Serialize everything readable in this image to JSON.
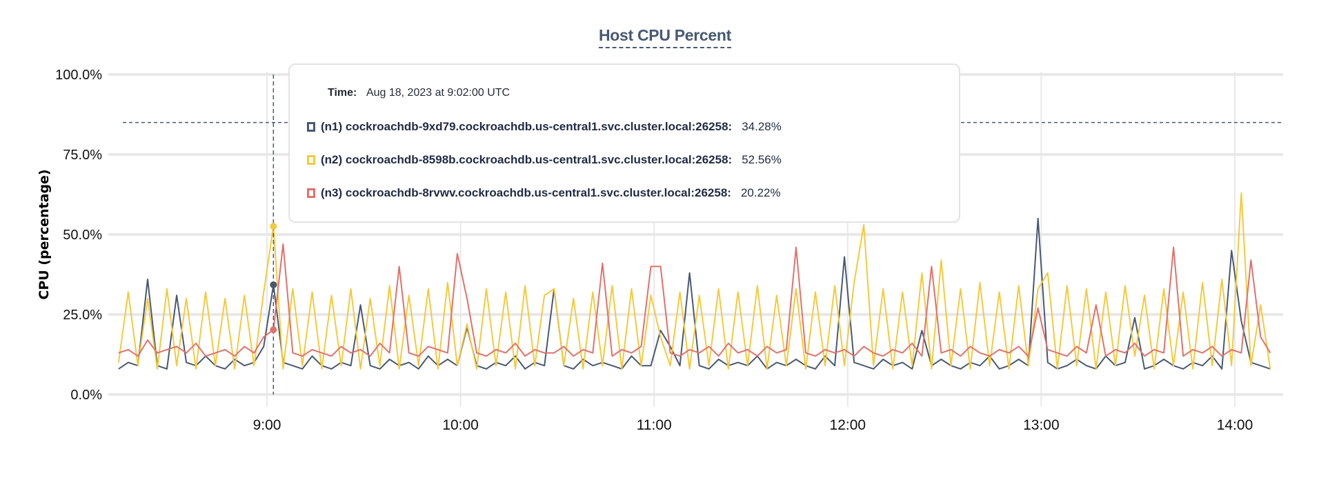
{
  "chart_data": {
    "type": "line",
    "title": "Host CPU Percent",
    "ylabel": "CPU (percentage)",
    "xlabel": "",
    "ylim": [
      0,
      100
    ],
    "yticks": [
      "0.0%",
      "25.0%",
      "50.0%",
      "75.0%",
      "100.0%"
    ],
    "ytick_values": [
      0,
      25,
      50,
      75,
      100
    ],
    "xticks": [
      "9:00",
      "10:00",
      "11:00",
      "12:00",
      "13:00",
      "14:00"
    ],
    "x_start": "08:14",
    "x_step_minutes": 3,
    "x_range": [
      "08:14",
      "14:11"
    ],
    "grid": true,
    "threshold": 85,
    "hover_index": 16,
    "series": [
      {
        "name": "(n1) cockroachdb-9xd79.cockroachdb.us-central1.svc.cluster.local:26258",
        "color": "#475872",
        "values": [
          8,
          10,
          9,
          36,
          9,
          8,
          31,
          10,
          9,
          12,
          9,
          8,
          11,
          9,
          10,
          15,
          34.28,
          10,
          9,
          8,
          12,
          9,
          8,
          10,
          9,
          28,
          9,
          8,
          11,
          9,
          10,
          8,
          12,
          9,
          11,
          9,
          21,
          9,
          8,
          10,
          9,
          12,
          8,
          10,
          9,
          33,
          9,
          8,
          11,
          9,
          10,
          9,
          8,
          12,
          9,
          9,
          20,
          15,
          9,
          38,
          9,
          8,
          11,
          9,
          10,
          9,
          12,
          8,
          10,
          9,
          11,
          9,
          8,
          12,
          9,
          43,
          10,
          9,
          8,
          11,
          9,
          10,
          8,
          20,
          9,
          11,
          9,
          8,
          10,
          9,
          12,
          8,
          9,
          11,
          9,
          55,
          10,
          8,
          9,
          11,
          9,
          8,
          12,
          9,
          10,
          24,
          8,
          9,
          11,
          9,
          8,
          10,
          9,
          12,
          8,
          45,
          23,
          10,
          9,
          8
        ]
      },
      {
        "name": "(n2) cockroachdb-8598b.cockroachdb.us-central1.svc.cluster.local:26258",
        "color": "#F5C93B",
        "values": [
          10,
          32,
          9,
          30,
          8,
          33,
          9,
          30,
          8,
          32,
          9,
          30,
          8,
          31,
          9,
          32,
          52.56,
          8,
          33,
          9,
          32,
          8,
          31,
          9,
          33,
          8,
          30,
          9,
          34,
          8,
          31,
          9,
          33,
          8,
          35,
          9,
          22,
          8,
          33,
          9,
          32,
          8,
          34,
          9,
          31,
          33,
          9,
          30,
          8,
          32,
          9,
          34,
          8,
          33,
          9,
          31,
          18,
          9,
          32,
          8,
          31,
          9,
          33,
          8,
          32,
          9,
          34,
          8,
          31,
          9,
          33,
          8,
          32,
          9,
          34,
          9,
          35,
          53,
          9,
          33,
          8,
          32,
          9,
          38,
          8,
          42,
          9,
          33,
          8,
          35,
          9,
          32,
          8,
          34,
          9,
          33,
          38,
          8,
          34,
          9,
          33,
          8,
          32,
          9,
          34,
          12,
          31,
          8,
          33,
          9,
          32,
          8,
          35,
          9,
          36,
          9,
          63,
          9,
          28,
          8
        ]
      },
      {
        "name": "(n3) cockroachdb-8rvwv.cockroachdb.us-central1.svc.cluster.local:26258",
        "color": "#E2706B",
        "values": [
          13,
          14,
          12,
          17,
          13,
          14,
          15,
          13,
          16,
          12,
          13,
          14,
          12,
          15,
          13,
          18,
          20.22,
          47,
          13,
          12,
          14,
          13,
          12,
          15,
          13,
          14,
          12,
          16,
          13,
          40,
          13,
          12,
          15,
          14,
          13,
          44,
          30,
          13,
          12,
          14,
          13,
          16,
          12,
          14,
          13,
          13,
          15,
          12,
          14,
          13,
          41,
          12,
          14,
          13,
          15,
          40,
          40,
          13,
          12,
          14,
          13,
          15,
          12,
          16,
          13,
          14,
          12,
          15,
          13,
          14,
          46,
          13,
          12,
          14,
          13,
          14,
          12,
          15,
          13,
          12,
          14,
          13,
          16,
          12,
          40,
          13,
          14,
          12,
          15,
          13,
          12,
          14,
          13,
          15,
          12,
          27,
          14,
          13,
          12,
          15,
          13,
          28,
          12,
          14,
          13,
          16,
          12,
          14,
          13,
          46,
          12,
          14,
          13,
          15,
          12,
          14,
          13,
          42,
          18,
          13
        ]
      }
    ]
  },
  "tooltip": {
    "time_label": "Time:",
    "time_value": "Aug 18, 2023 at 9:02:00 UTC",
    "rows": [
      {
        "name": "(n1) cockroachdb-9xd79.cockroachdb.us-central1.svc.cluster.local:26258:",
        "value": "34.28%",
        "color": "#475872"
      },
      {
        "name": "(n2) cockroachdb-8598b.cockroachdb.us-central1.svc.cluster.local:26258:",
        "value": "52.56%",
        "color": "#F5C93B"
      },
      {
        "name": "(n3) cockroachdb-8rvwv.cockroachdb.us-central1.svc.cluster.local:26258:",
        "value": "20.22%",
        "color": "#E2706B"
      }
    ]
  }
}
